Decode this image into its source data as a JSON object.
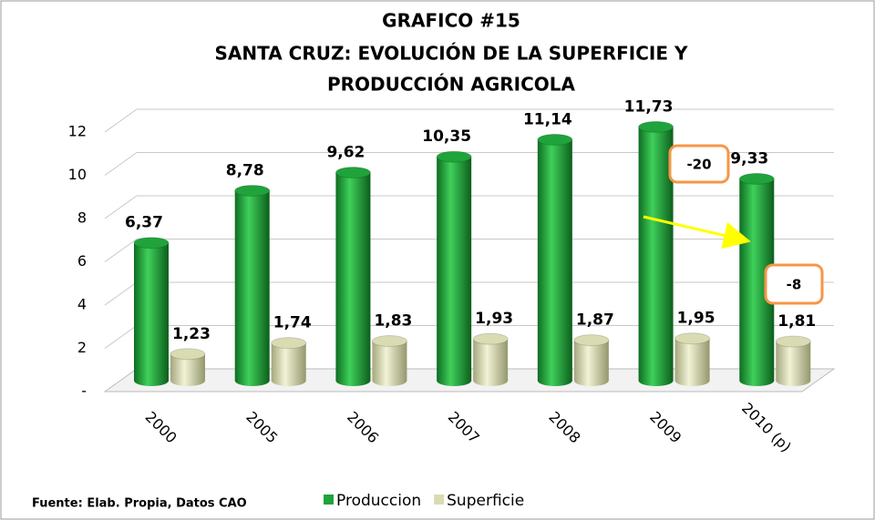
{
  "chart_data": {
    "type": "bar3d",
    "title": [
      "GRAFICO #15",
      "SANTA CRUZ: EVOLUCIÓN DE LA SUPERFICIE Y",
      "PRODUCCIÓN AGRICOLA"
    ],
    "categories": [
      "2000",
      "2005",
      "2006",
      "2007",
      "2008",
      "2009",
      "2010 (p)"
    ],
    "series": [
      {
        "name": "Produccion",
        "color": "#1fa33a",
        "values": [
          6.37,
          8.78,
          9.62,
          10.35,
          11.14,
          11.73,
          9.33
        ],
        "value_labels": [
          "6,37",
          "8,78",
          "9,62",
          "10,35",
          "11,14",
          "11,73",
          "9,33"
        ]
      },
      {
        "name": "Superficie",
        "color": "#d9dcb2",
        "values": [
          1.23,
          1.74,
          1.83,
          1.93,
          1.87,
          1.95,
          1.81
        ],
        "value_labels": [
          "1,23",
          "1,74",
          "1,83",
          "1,93",
          "1,87",
          "1,95",
          "1,81"
        ]
      }
    ],
    "ylim": [
      0,
      12
    ],
    "yticks": [
      {
        "value": 0,
        "label": "-"
      },
      2,
      4,
      6,
      8,
      10,
      12
    ],
    "grid": true,
    "legend": "bottom",
    "annotations": [
      "-20",
      "-8"
    ],
    "source": "Fuente: Elab. Propia, Datos CAO"
  }
}
